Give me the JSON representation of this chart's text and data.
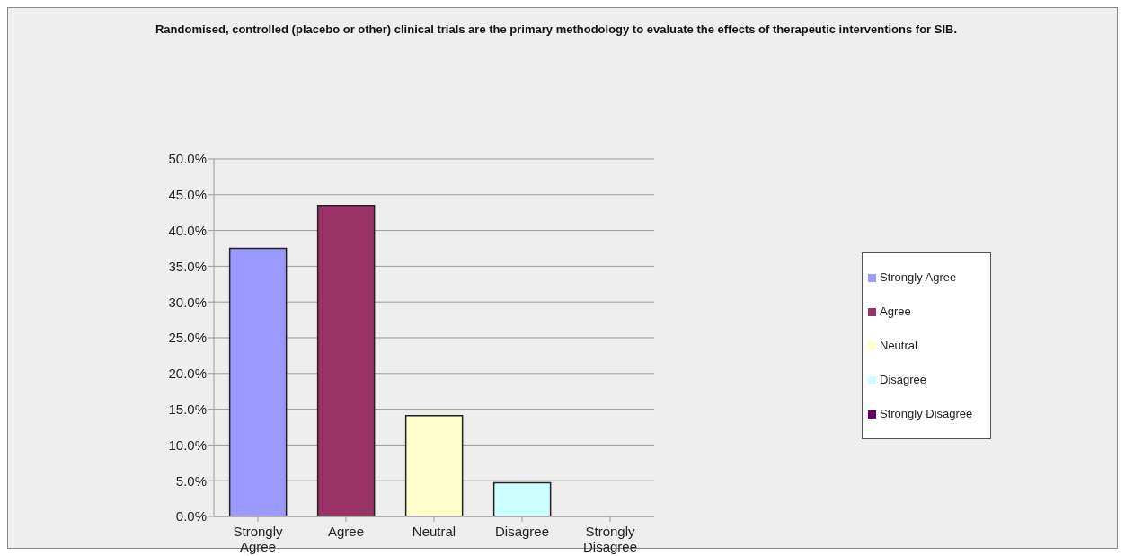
{
  "chart_data": {
    "type": "bar",
    "title": "Randomised, controlled (placebo or other) clinical trials are the primary methodology to evaluate the effects of therapeutic interventions for SIB.",
    "categories": [
      "Strongly Agree",
      "Agree",
      "Neutral",
      "Disagree",
      "Strongly Disagree"
    ],
    "series": [
      {
        "name": "Strongly Agree",
        "color": "#9999ff",
        "values": [
          37.5,
          null,
          null,
          null,
          null
        ]
      },
      {
        "name": "Agree",
        "color": "#993366",
        "values": [
          null,
          43.5,
          null,
          null,
          null
        ]
      },
      {
        "name": "Neutral",
        "color": "#ffffcc",
        "values": [
          null,
          null,
          14.1,
          null,
          null
        ]
      },
      {
        "name": "Disagree",
        "color": "#ccffff",
        "values": [
          null,
          null,
          null,
          4.7,
          null
        ]
      },
      {
        "name": "Strongly Disagree",
        "color": "#660066",
        "values": [
          null,
          null,
          null,
          null,
          0
        ]
      }
    ],
    "stacked": true,
    "ylim": [
      0,
      50
    ],
    "yticks": [
      {
        "value": 0,
        "label": "0.0%"
      },
      {
        "value": 5,
        "label": "5.0%"
      },
      {
        "value": 10,
        "label": "10.0%"
      },
      {
        "value": 15,
        "label": "15.0%"
      },
      {
        "value": 20,
        "label": "20.0%"
      },
      {
        "value": 25,
        "label": "25.0%"
      },
      {
        "value": 30,
        "label": "30.0%"
      },
      {
        "value": 35,
        "label": "35.0%"
      },
      {
        "value": 40,
        "label": "40.0%"
      },
      {
        "value": 45,
        "label": "45.0%"
      },
      {
        "value": 50,
        "label": "50.0%"
      }
    ],
    "grid": "y",
    "legend": "right"
  }
}
